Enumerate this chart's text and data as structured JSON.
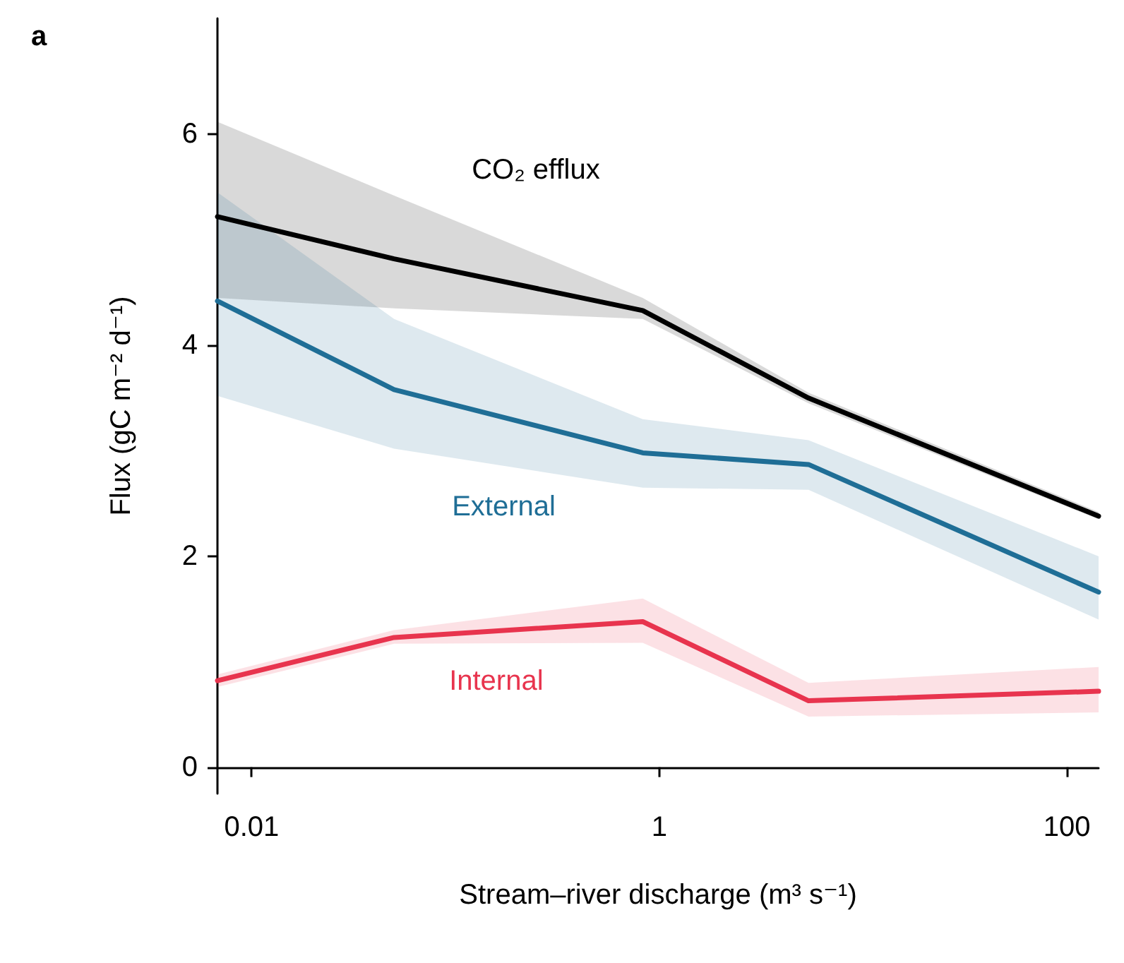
{
  "chart_data": {
    "type": "line",
    "xlabel": "Stream–river discharge (m³ s⁻¹)",
    "ylabel": "Flux (gC m⁻² d⁻¹)",
    "annotations": [
      "a"
    ],
    "x": [
      0.0068,
      0.05,
      0.83,
      5.4,
      143
    ],
    "log": "x",
    "xlim": [
      0.0068,
      143
    ],
    "xticks": [
      0.01,
      1,
      100
    ],
    "ylim": [
      -0.25,
      7.1
    ],
    "yticks": [
      0,
      2,
      4,
      6
    ],
    "grid": false,
    "legend": false,
    "marker": "none",
    "line_style": "solid",
    "series": [
      {
        "name": "CO₂ efflux",
        "color": "#000000",
        "values": [
          5.22,
          4.82,
          4.33,
          3.5,
          2.38
        ],
        "lower": [
          4.45,
          4.35,
          4.25,
          3.45,
          2.35
        ],
        "upper": [
          6.12,
          5.42,
          4.45,
          3.55,
          2.42
        ]
      },
      {
        "name": "External",
        "color": "#1f6e96",
        "values": [
          4.42,
          3.58,
          2.98,
          2.87,
          1.66
        ],
        "lower": [
          3.52,
          3.02,
          2.65,
          2.63,
          1.4
        ],
        "upper": [
          5.45,
          4.25,
          3.3,
          3.1,
          2.0
        ]
      },
      {
        "name": "Internal",
        "color": "#e8344e",
        "values": [
          0.82,
          1.23,
          1.38,
          0.63,
          0.72
        ],
        "lower": [
          0.76,
          1.17,
          1.18,
          0.48,
          0.52
        ],
        "upper": [
          0.88,
          1.3,
          1.6,
          0.8,
          0.95
        ]
      }
    ]
  }
}
